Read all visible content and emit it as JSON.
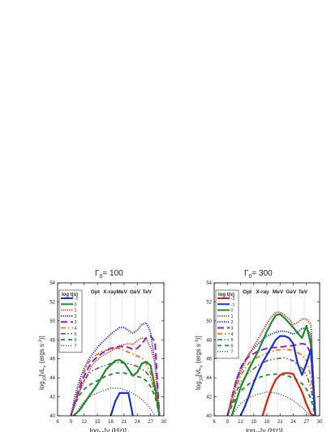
{
  "chart_data": [
    {
      "type": "line",
      "title": "Γ",
      "title_sub": "0",
      "title_value": "= 100",
      "xlabel_prefix": "log",
      "xlabel_sub": "10",
      "xlabel_rest": "[ν (Hz)]",
      "ylabel_prefix": "log",
      "ylabel_sub": "10",
      "ylabel_rest": "[νL",
      "ylabel_sub2": "ν",
      "ylabel_rest2": " (ergs s",
      "ylabel_sup": "-1",
      "ylabel_end": ")]",
      "xlim": [
        6,
        30
      ],
      "ylim": [
        40,
        54
      ],
      "xticks": [
        "6",
        "9",
        "12",
        "15",
        "18",
        "21",
        "24",
        "27",
        "30"
      ],
      "yticks": [
        "40",
        "42",
        "44",
        "46",
        "48",
        "50",
        "52",
        "54"
      ],
      "bands": [
        {
          "label": "Opt",
          "x": 14.5
        },
        {
          "label": "X-ray",
          "x": 17.8
        },
        {
          "label": "MeV",
          "x": 20.5
        },
        {
          "label": "GeV",
          "x": 23.5
        },
        {
          "label": "TeV",
          "x": 26.2
        }
      ],
      "band_lines": [
        14.6,
        18,
        20.5,
        23.5,
        26.5
      ],
      "legend_title": "log t(s)",
      "legend_placement": "top-left",
      "series": [
        {
          "name": "-1",
          "color": "#1a2fd1",
          "dash": "",
          "width": 2.2,
          "x": [
            18,
            19,
            20,
            22,
            23
          ],
          "y": [
            40,
            41.5,
            42.4,
            42.4,
            40
          ]
        },
        {
          "name": "0",
          "color": "#1f8a2a",
          "dash": "",
          "width": 2.2,
          "x": [
            9.5,
            11,
            13,
            15,
            17,
            19,
            20,
            21,
            22,
            23,
            24,
            25,
            26,
            27,
            28,
            29
          ],
          "y": [
            40,
            40.6,
            42,
            43.3,
            44.9,
            45.8,
            45.9,
            45.6,
            44.9,
            44.2,
            44.6,
            45.5,
            45.7,
            45.3,
            43,
            40
          ]
        },
        {
          "name": "1",
          "color": "#d8230f",
          "dash": "1.2,1.4",
          "width": 1.6,
          "x": [
            9,
            10,
            11,
            12,
            14,
            16,
            18,
            20,
            22,
            23,
            24,
            25,
            26,
            27,
            28,
            29
          ],
          "y": [
            40,
            41.3,
            42.6,
            43.7,
            45.5,
            46.3,
            46.8,
            47.4,
            47.6,
            47.5,
            47.9,
            48.2,
            48.1,
            47.2,
            45.5,
            40
          ]
        },
        {
          "name": "2",
          "color": "#2030d0",
          "dash": "1.2,1.4",
          "width": 2,
          "x": [
            9,
            10,
            11,
            12,
            13,
            14,
            15,
            16,
            18,
            20,
            21,
            22,
            23,
            24,
            25,
            26,
            27,
            28,
            29
          ],
          "y": [
            40,
            42.2,
            43.8,
            45,
            45.9,
            46.6,
            47.2,
            47.7,
            48.6,
            49.3,
            49.3,
            49,
            48.7,
            49,
            49.6,
            49.8,
            48.8,
            45.5,
            40
          ]
        },
        {
          "name": "3",
          "color": "#9a1fbf",
          "dash": "8,4",
          "width": 2,
          "x": [
            9,
            10,
            11,
            12,
            13,
            14,
            16,
            18,
            20,
            21,
            22,
            23,
            24,
            25,
            26,
            27,
            28,
            29
          ],
          "y": [
            40,
            41.5,
            43,
            44.2,
            45.1,
            45.8,
            46.6,
            47.1,
            47.3,
            47.3,
            47.2,
            47,
            47.1,
            47.6,
            48.2,
            48.4,
            47.8,
            40
          ]
        },
        {
          "name": "4",
          "color": "#e07e10",
          "dash": "6,3,1.5,3",
          "width": 1.8,
          "x": [
            9,
            10,
            11,
            12,
            13,
            14,
            16,
            18,
            19,
            20,
            21,
            22,
            23,
            24,
            25,
            26,
            27,
            28,
            29
          ],
          "y": [
            40,
            41.6,
            43.3,
            44.6,
            45.6,
            46.2,
            46.8,
            47,
            47.1,
            47.1,
            46.9,
            46.7,
            46.5,
            46.3,
            46.1,
            45.5,
            44.5,
            42.5,
            40
          ]
        },
        {
          "name": "5",
          "color": "#555555",
          "dash": "6,2.5,1.5,2.5,1.5,2.5",
          "width": 1.5,
          "x": [
            9,
            10,
            11,
            12,
            13,
            14,
            16,
            18,
            19,
            20,
            22,
            24,
            26,
            27,
            28,
            29
          ],
          "y": [
            40,
            41.4,
            42.7,
            43.7,
            44.4,
            44.8,
            45.2,
            45.5,
            45.6,
            45.6,
            45.5,
            45.2,
            44.6,
            44,
            42.5,
            40
          ]
        },
        {
          "name": "6",
          "color": "#1f8a2a",
          "dash": "5,4",
          "width": 1.8,
          "x": [
            9,
            10,
            11,
            12,
            13,
            15,
            17,
            19,
            21,
            23,
            25,
            26,
            27,
            28,
            29
          ],
          "y": [
            40,
            41.3,
            42.2,
            42.8,
            43.2,
            43.7,
            44.2,
            44.5,
            44.5,
            44.3,
            44,
            43.7,
            43.1,
            42,
            40
          ]
        },
        {
          "name": "7",
          "color": "#333333",
          "dash": "1,2",
          "width": 1.4,
          "x": [
            10,
            11,
            12,
            14,
            16,
            18,
            20,
            22,
            24,
            26,
            27,
            28
          ],
          "y": [
            40,
            40.9,
            41.5,
            42.2,
            42.6,
            42.9,
            42.9,
            42.6,
            42.1,
            41.3,
            40.7,
            40
          ]
        }
      ]
    },
    {
      "type": "line",
      "title": "Γ",
      "title_sub": "0",
      "title_value": "= 300",
      "xlabel_prefix": "log",
      "xlabel_sub": "10",
      "xlabel_rest": "[ν (Hz)]",
      "ylabel_prefix": "log",
      "ylabel_sub": "10",
      "ylabel_rest": "[νL",
      "ylabel_sub2": "ν",
      "ylabel_rest2": " (ergs s",
      "ylabel_sup": "-1",
      "ylabel_end": ")]",
      "xlim": [
        6,
        30
      ],
      "ylim": [
        40,
        54
      ],
      "xticks": [
        "6",
        "9",
        "12",
        "15",
        "18",
        "21",
        "24",
        "27",
        "30"
      ],
      "yticks": [
        "40",
        "42",
        "44",
        "46",
        "48",
        "50",
        "52",
        "54"
      ],
      "bands": [
        {
          "label": "Opt",
          "x": 13.5
        },
        {
          "label": "X-ray",
          "x": 17
        },
        {
          "label": "MeV",
          "x": 20.5
        },
        {
          "label": "GeV",
          "x": 23.5
        },
        {
          "label": "TeV",
          "x": 26.2
        }
      ],
      "band_lines": [
        14.2,
        17.8,
        20.5,
        23.5,
        26.5
      ],
      "legend_title": "log t(s)",
      "legend_placement": "top-left",
      "series": [
        {
          "name": "-2",
          "color": "#d8230f",
          "dash": "",
          "width": 2.2,
          "x": [
            17,
            18,
            19,
            20,
            21,
            22,
            23,
            24,
            26,
            27,
            28,
            29
          ],
          "y": [
            40,
            41.5,
            42.8,
            43.8,
            44.3,
            44.5,
            44.5,
            44.4,
            42.5,
            41.2,
            40.2,
            40
          ]
        },
        {
          "name": "-1",
          "color": "#1a2fd1",
          "dash": "",
          "width": 2.2,
          "x": [
            12,
            13,
            14,
            15,
            16,
            17,
            18,
            19,
            20,
            21,
            22,
            23,
            24,
            25,
            26,
            27,
            28,
            29
          ],
          "y": [
            40,
            41,
            42.2,
            43.5,
            44.6,
            45.6,
            46.4,
            47.2,
            48,
            48.4,
            48.4,
            48.2,
            47.6,
            45.5,
            44.3,
            45.5,
            47,
            40
          ]
        },
        {
          "name": "0",
          "color": "#1f8a2a",
          "dash": "",
          "width": 2.2,
          "x": [
            10,
            11,
            12,
            14,
            16,
            18,
            19,
            20,
            21,
            22,
            23,
            24,
            25,
            26,
            27,
            28,
            29
          ],
          "y": [
            40,
            41.5,
            43,
            45,
            46.8,
            48.9,
            49.8,
            50.6,
            50.7,
            50.3,
            49.8,
            49.3,
            48.7,
            48.2,
            49.5,
            47.5,
            40
          ]
        },
        {
          "name": "1",
          "color": "#d8230f",
          "dash": "1.2,1.4",
          "width": 1.8,
          "x": [
            9,
            10,
            11,
            12,
            13,
            14,
            16,
            18,
            19,
            20,
            21,
            22,
            23,
            24,
            25,
            26,
            27,
            28,
            29
          ],
          "y": [
            40,
            41.8,
            43.4,
            44.6,
            45.6,
            46.5,
            48.1,
            49.7,
            50.4,
            50.9,
            50.9,
            50.6,
            50.2,
            49.6,
            49.8,
            50.2,
            50.2,
            49.6,
            40
          ]
        },
        {
          "name": "2",
          "color": "#2030d0",
          "dash": "1.2,1.4",
          "width": 2,
          "x": [
            9,
            10,
            11,
            12,
            14,
            16,
            18,
            20,
            21,
            22,
            23,
            24,
            25,
            26,
            27,
            28,
            29
          ],
          "y": [
            40,
            42,
            43.8,
            45,
            46.6,
            47.6,
            48.4,
            48.8,
            48.9,
            48.9,
            48.8,
            48.6,
            48.8,
            49.2,
            49.2,
            48.5,
            40
          ]
        },
        {
          "name": "3",
          "color": "#9a1fbf",
          "dash": "8,4",
          "width": 2,
          "x": [
            9,
            10,
            11,
            12,
            13,
            14,
            16,
            18,
            19,
            20,
            22,
            24,
            26,
            27,
            28,
            29
          ],
          "y": [
            40,
            41.8,
            43.6,
            45,
            45.8,
            46.3,
            46.8,
            47.1,
            47.2,
            47.2,
            47.3,
            47.4,
            47.6,
            47.5,
            46.5,
            40
          ]
        },
        {
          "name": "4",
          "color": "#e07e10",
          "dash": "6,3,1.5,3",
          "width": 1.8,
          "x": [
            9,
            10,
            11,
            12,
            13,
            14,
            16,
            18,
            20,
            22,
            24,
            26,
            27,
            28,
            29
          ],
          "y": [
            40,
            41.5,
            43,
            44.2,
            45,
            45.6,
            46.2,
            46.6,
            46.9,
            47,
            46.9,
            46.4,
            45.8,
            44.2,
            40
          ]
        },
        {
          "name": "5",
          "color": "#555555",
          "dash": "6,2.5,1.5,2.5,1.5,2.5",
          "width": 1.5,
          "x": [
            9,
            10,
            11,
            12,
            14,
            16,
            18,
            20,
            22,
            24,
            26,
            27,
            28,
            29
          ],
          "y": [
            40,
            41.2,
            42.5,
            43.5,
            44.6,
            45.3,
            45.8,
            46,
            46.1,
            45.8,
            45,
            44.3,
            43,
            40
          ]
        },
        {
          "name": "6",
          "color": "#1f8a2a",
          "dash": "5,4",
          "width": 1.8,
          "x": [
            9,
            10,
            11,
            12,
            14,
            16,
            18,
            20,
            22,
            24,
            26,
            27,
            28,
            29
          ],
          "y": [
            40,
            41,
            41.9,
            42.6,
            43.4,
            44,
            44.3,
            44.4,
            44.3,
            44,
            43.4,
            42.8,
            41.8,
            40
          ]
        },
        {
          "name": "7",
          "color": "#333333",
          "dash": "1,2",
          "width": 1.4,
          "x": [
            10,
            11,
            12,
            14,
            16,
            18,
            20,
            22,
            24,
            26,
            27,
            28
          ],
          "y": [
            40,
            40.7,
            41.3,
            41.9,
            42.3,
            42.5,
            42.4,
            42.1,
            41.6,
            40.9,
            40.4,
            40
          ]
        }
      ]
    }
  ]
}
